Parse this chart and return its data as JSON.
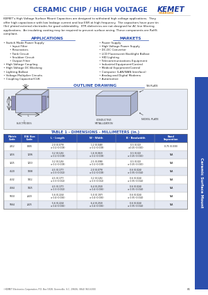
{
  "title": "CERAMIC CHIP / HIGH VOLTAGE",
  "title_color": "#2b4fad",
  "kemet_color": "#1a3a9c",
  "charged_color": "#e8900a",
  "bg_color": "#ffffff",
  "intro_text": "KEMET's High Voltage Surface Mount Capacitors are designed to withstand high voltage applications.  They offer high capacitance with low leakage current and low ESR at high frequency.  The capacitors have pure tin (Sn) plated external electrodes for good solderability.  XTR dielectrics are not designed for AC line filtering applications.  An insulating coating may be required to prevent surface arcing. These components are RoHS compliant.",
  "applications_title": "APPLICATIONS",
  "applications": [
    "Switch Mode Power Supply",
    "sub:Input Filter",
    "sub:Resonators",
    "sub:Tank Circuit",
    "sub:Snubber Circuit",
    "sub:Output Filter",
    "High Voltage Coupling",
    "High Voltage DC Blocking",
    "Lighting Ballast",
    "Voltage Multiplier Circuits",
    "Coupling Capacitor/CUK"
  ],
  "markets_title": "MARKETS",
  "markets": [
    "Power Supply",
    "High Voltage Power Supply",
    "DC-DC Converter",
    "LCD Fluorescent Backlight Ballast",
    "HID Lighting",
    "Telecommunications Equipment",
    "Industrial Equipment/Control",
    "Medical Equipment/Control",
    "Computer (LAN/WAN Interface)",
    "Analog and Digital Modems",
    "Automotive"
  ],
  "outline_title": "OUTLINE DRAWING",
  "table_title": "TABLE 1 - DIMENSIONS - MILLIMETERS (in.)",
  "table_headers": [
    "Metric\nCode",
    "EIA Size\nCode",
    "L - Length",
    "W - Width",
    "B - Bandwidth",
    "Band\nSeparation"
  ],
  "table_rows": [
    [
      "2012",
      "0805",
      "2.0 (0.079)\n± 0.2 (0.008)",
      "1.2 (0.048)\n± 0.2 (0.008)",
      "0.5 (0.02)\n±0.25 (0.010)",
      "0.75 (0.030)"
    ],
    [
      "3216",
      "1206",
      "3.2 (0.126)\n± 0.2 (0.008)",
      "1.6 (0.063)\n± 0.2 (0.008)",
      "0.5 (0.02)\n± 0.25 (0.010)",
      "N/A"
    ],
    [
      "3225",
      "1210",
      "3.2 (0.126)\n± 0.2 (0.008)",
      "2.5 (0.098)\n± 0.2 (0.008)",
      "0.5 (0.02)\n± 0.25 (0.010)",
      "N/A"
    ],
    [
      "4520",
      "1808",
      "4.5 (0.177)\n± 0.3 (0.012)",
      "2.0 (0.079)\n± 0.2 (0.008)",
      "0.6 (0.024)\n± 0.35 (0.014)",
      "N/A"
    ],
    [
      "4532",
      "1812",
      "4.5 (0.177)\n± 0.3 (0.012)",
      "3.2 (0.126)\n± 0.3 (0.012)",
      "0.6 (0.024)\n± 0.35 (0.014)",
      "N/A"
    ],
    [
      "4564",
      "1825",
      "4.5 (0.177)\n± 0.3 (0.012)",
      "6.4 (0.250)\n± 0.4 (0.016)",
      "0.6 (0.024)\n± 0.35 (0.014)",
      "N/A"
    ],
    [
      "5650",
      "2220",
      "5.6 (0.224)\n± 0.4 (0.016)",
      "5.0 (0.197)\n± 0.4 (0.016)",
      "0.6 (0.024)\n± 0.35 (0.014)",
      "N/A"
    ],
    [
      "5664",
      "2225",
      "5.6 (0.224)\n± 0.4 (0.016)",
      "6.4 (0.250)\n± 0.4 (0.016)",
      "0.6 (0.024)\n± 0.35 (0.014)",
      "N/A"
    ]
  ],
  "footer_text": "©KEMET Electronics Corporation, P.O. Box 5928, Greenville, S.C. 29606, (864) 963-6300",
  "page_num": "81",
  "sidebar_text": "Ceramic Surface Mount",
  "sidebar_color": "#2b4fad"
}
